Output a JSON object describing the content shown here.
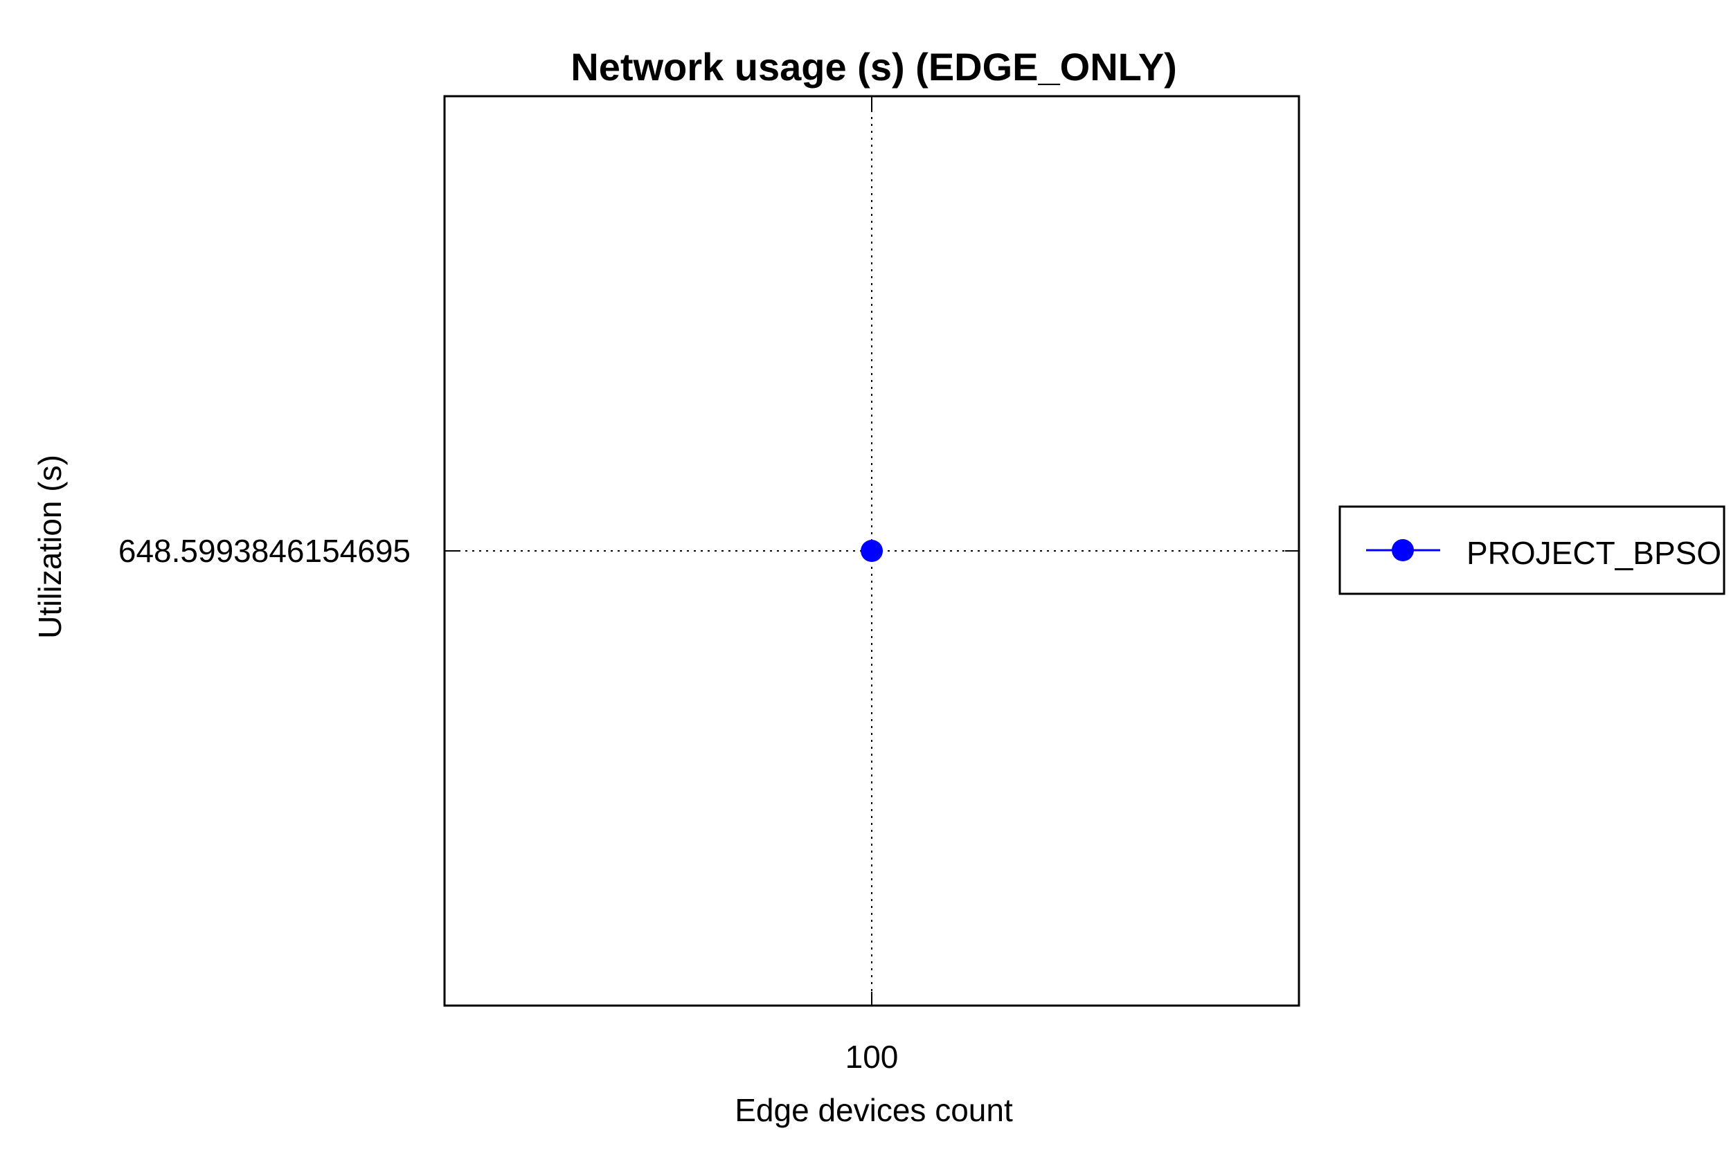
{
  "chart_data": {
    "type": "scatter",
    "title": "Network usage (s) (EDGE_ONLY)",
    "xlabel": "Edge devices count",
    "ylabel": "Utilization (s)",
    "x_ticks": [
      "100"
    ],
    "y_ticks": [
      "648.5993846154695"
    ],
    "series": [
      {
        "name": "PROJECT_BPSO",
        "color": "#0000ff",
        "marker": "circle",
        "x": [
          100
        ],
        "y": [
          648.5993846154695
        ]
      }
    ],
    "xlim": [
      99,
      101
    ],
    "ylim": [
      647.5993846154695,
      649.5993846154695
    ],
    "grid": true,
    "grid_style": "dotted",
    "legend_position": "right"
  }
}
